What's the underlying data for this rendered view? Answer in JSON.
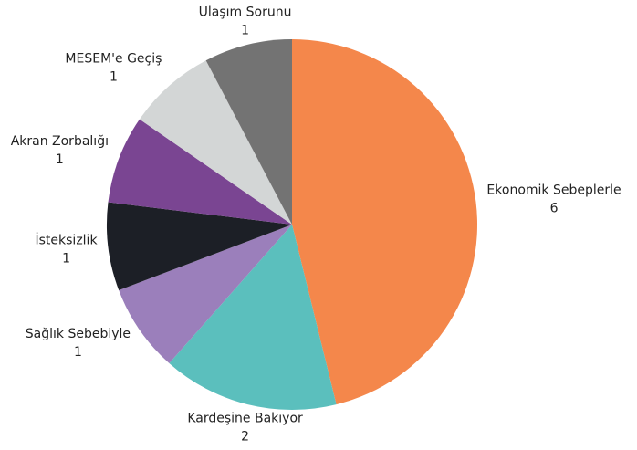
{
  "chart_data": {
    "type": "pie",
    "categories": [
      "Ekonomik Sebeplerle",
      "Kardeşine Bakıyor",
      "Sağlık Sebebiyle",
      "İsteksizlik",
      "Akran Zorbalığı",
      "MESEM'e Geçiş",
      "Ulaşım Sorunu"
    ],
    "values": [
      6,
      2,
      1,
      1,
      1,
      1,
      1
    ],
    "colors": [
      "#f4874b",
      "#5bbfbd",
      "#9b7fbb",
      "#1c1f26",
      "#7a4592",
      "#d3d6d6",
      "#737373"
    ]
  }
}
